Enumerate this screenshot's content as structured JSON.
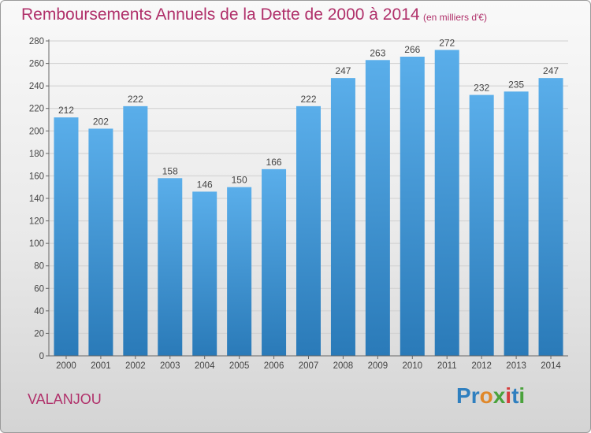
{
  "header": {
    "title": "Remboursements Annuels de la Dette de 2000 à 2014",
    "subtitle": "(en milliers d'€)"
  },
  "footer": {
    "commune": "VALANJOU",
    "logo_text": "Proxiti"
  },
  "colors": {
    "accent": "#b0306a",
    "bar_top": "#5aaeea",
    "bar_bottom": "#2a7ab8",
    "grid": "#d0d0d0"
  },
  "chart_data": {
    "type": "bar",
    "title": "Remboursements Annuels de la Dette de 2000 à 2014",
    "subtitle": "(en milliers d'€)",
    "xlabel": "",
    "ylabel": "",
    "categories": [
      "2000",
      "2001",
      "2002",
      "2003",
      "2004",
      "2005",
      "2006",
      "2007",
      "2008",
      "2009",
      "2010",
      "2011",
      "2012",
      "2013",
      "2014"
    ],
    "values": [
      212,
      202,
      222,
      158,
      146,
      150,
      166,
      222,
      247,
      263,
      266,
      272,
      232,
      235,
      247
    ],
    "ylim": [
      0,
      280
    ],
    "yticks": [
      0,
      20,
      40,
      60,
      80,
      100,
      120,
      140,
      160,
      180,
      200,
      220,
      240,
      260,
      280
    ],
    "grid": true,
    "data_labels": true
  }
}
